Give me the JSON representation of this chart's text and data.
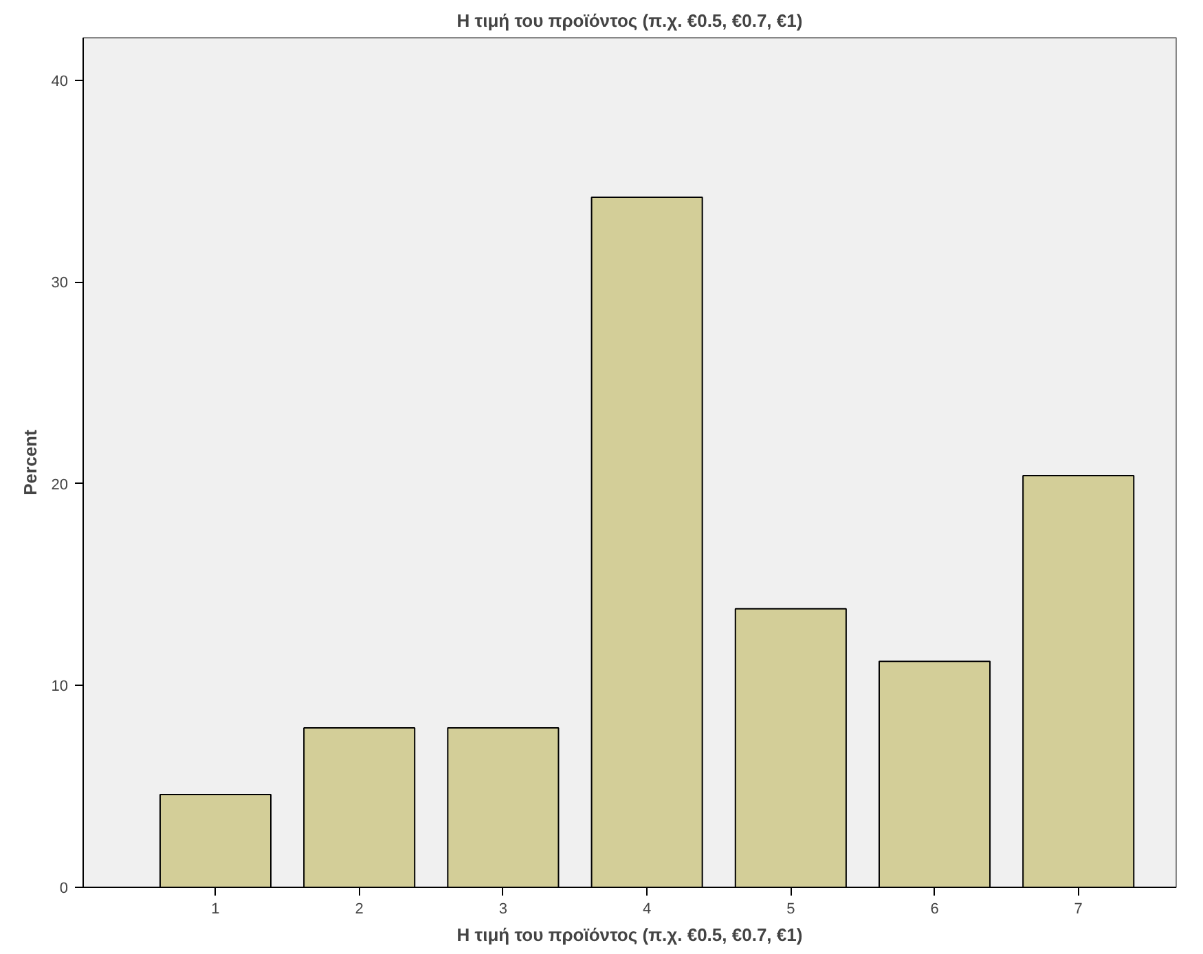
{
  "chart_data": {
    "type": "bar",
    "title": "Η τιμή του προϊόντος (π.χ. €0.5, €0.7, €1)",
    "xlabel": "Η τιμή του προϊόντος (π.χ. €0.5, €0.7, €1)",
    "ylabel": "Percent",
    "categories": [
      "1",
      "2",
      "3",
      "4",
      "5",
      "6",
      "7"
    ],
    "values": [
      4.6,
      7.9,
      7.9,
      34.2,
      13.8,
      11.2,
      20.4
    ],
    "color": "#d3ce98",
    "ylim": [
      0,
      42.1
    ],
    "yticks": [
      0,
      10,
      20,
      30,
      40
    ],
    "grid": false
  }
}
